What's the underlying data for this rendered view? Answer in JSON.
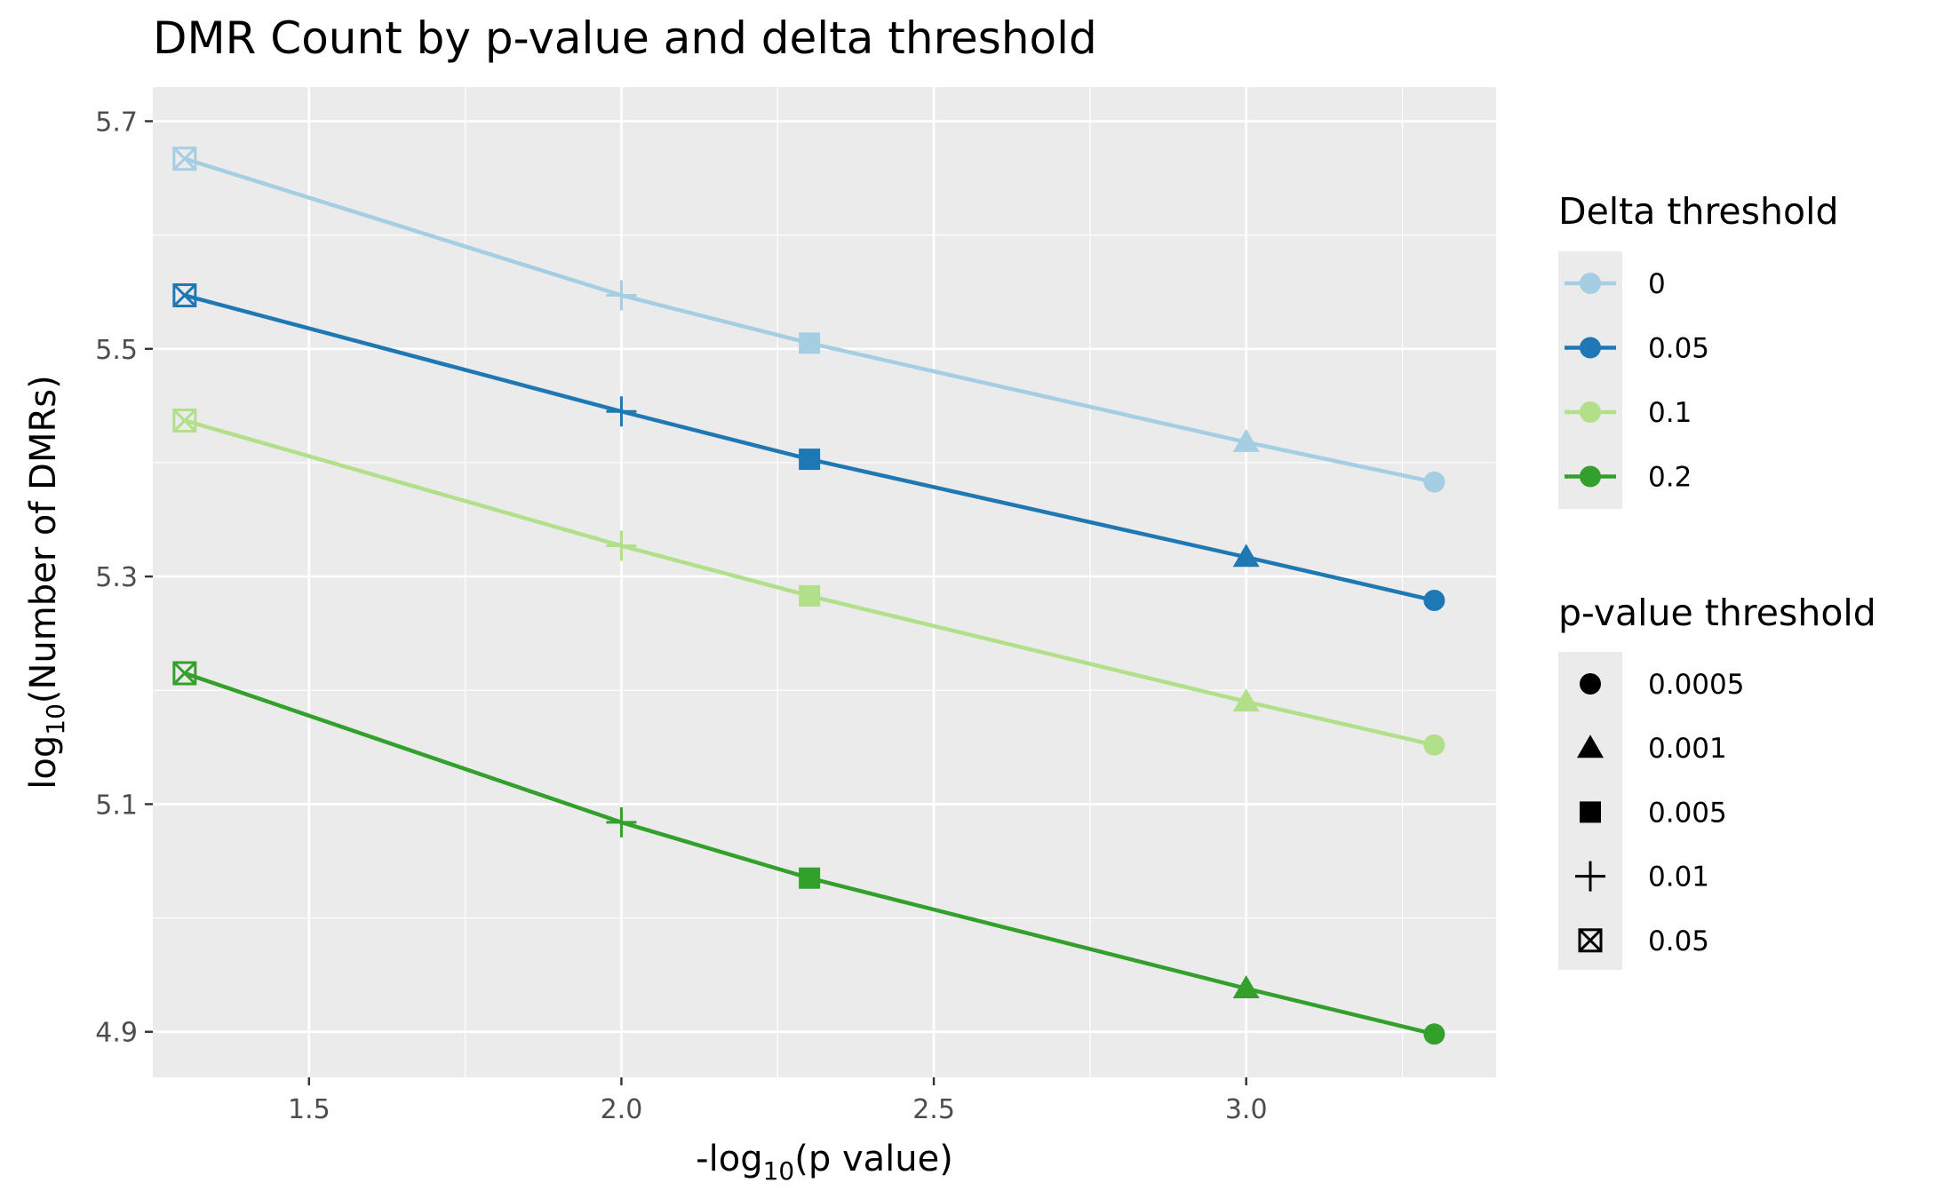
{
  "chart_data": {
    "type": "line",
    "title": "DMR Count by p-value and delta threshold",
    "xlabel": {
      "prefix": "-log",
      "sub": "10",
      "suffix": "(p value)"
    },
    "ylabel": {
      "prefix": "log",
      "sub": "10",
      "suffix": "(Number of DMRs)"
    },
    "xlim": [
      1.25,
      3.4
    ],
    "ylim": [
      4.86,
      5.73
    ],
    "x_ticks": [
      1.5,
      2.0,
      2.5,
      3.0
    ],
    "x_tick_labels": [
      "1.5",
      "2.0",
      "2.5",
      "3.0"
    ],
    "y_ticks": [
      4.9,
      5.1,
      5.3,
      5.5,
      5.7
    ],
    "y_tick_labels": [
      "4.9",
      "5.1",
      "5.3",
      "5.5",
      "5.7"
    ],
    "grid": true,
    "legend_position": "right",
    "x": [
      1.301,
      2.0,
      2.301,
      3.0,
      3.301
    ],
    "point_shapes": [
      "boxed-x",
      "plus",
      "square",
      "triangle",
      "circle"
    ],
    "series": [
      {
        "name": "0",
        "color": "#A6CEE3",
        "values": [
          5.667,
          5.547,
          5.505,
          5.418,
          5.383
        ]
      },
      {
        "name": "0.05",
        "color": "#1F78B4",
        "values": [
          5.547,
          5.445,
          5.403,
          5.317,
          5.279
        ]
      },
      {
        "name": "0.1",
        "color": "#B2DF8A",
        "values": [
          5.437,
          5.327,
          5.283,
          5.19,
          5.152
        ]
      },
      {
        "name": "0.2",
        "color": "#33A02C",
        "values": [
          5.215,
          5.084,
          5.035,
          4.938,
          4.898
        ]
      }
    ],
    "legends": [
      {
        "title": "Delta threshold",
        "items": [
          {
            "label": "0",
            "color": "#A6CEE3"
          },
          {
            "label": "0.05",
            "color": "#1F78B4"
          },
          {
            "label": "0.1",
            "color": "#B2DF8A"
          },
          {
            "label": "0.2",
            "color": "#33A02C"
          }
        ]
      },
      {
        "title": "p-value threshold",
        "items": [
          {
            "label": "0.0005",
            "shape": "circle"
          },
          {
            "label": "0.001",
            "shape": "triangle"
          },
          {
            "label": "0.005",
            "shape": "square"
          },
          {
            "label": "0.01",
            "shape": "plus"
          },
          {
            "label": "0.05",
            "shape": "boxed-x"
          }
        ]
      }
    ],
    "colors": {
      "panel_background": "#EBEBEB",
      "grid_major": "#FFFFFF",
      "tick_text": "#4D4D4D"
    }
  }
}
